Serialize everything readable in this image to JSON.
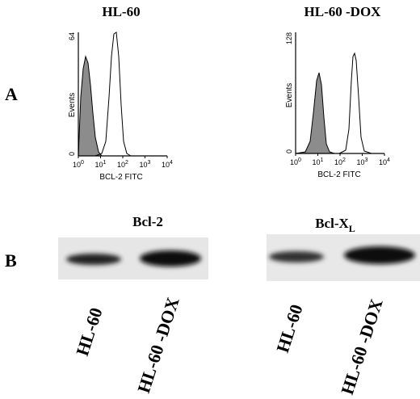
{
  "panel_labels": [
    "A",
    "B"
  ],
  "flow": [
    {
      "title": "HL-60",
      "y_label": "Events",
      "x_label": "BCL-2 FITC",
      "y_ticks": [
        0,
        64
      ],
      "x_ticks": [
        {
          "base": 10,
          "exp": 0
        },
        {
          "base": 10,
          "exp": 1
        },
        {
          "base": 10,
          "exp": 2
        },
        {
          "base": 10,
          "exp": 3
        },
        {
          "base": 10,
          "exp": 4
        }
      ]
    },
    {
      "title": "HL-60 -DOX",
      "y_label": "Events",
      "x_label": "BCL-2 FITC",
      "y_ticks": [
        0,
        128
      ],
      "x_ticks": [
        {
          "base": 10,
          "exp": 0
        },
        {
          "base": 10,
          "exp": 1
        },
        {
          "base": 10,
          "exp": 2
        },
        {
          "base": 10,
          "exp": 3
        },
        {
          "base": 10,
          "exp": 4
        }
      ]
    }
  ],
  "blots": [
    {
      "title": "Bcl-2",
      "lanes": [
        "HL-60",
        "HL-60 -DOX"
      ]
    },
    {
      "title": "Bcl-X",
      "title_sub": "L",
      "lanes": [
        "HL-60",
        "HL-60 -DOX"
      ]
    }
  ]
}
